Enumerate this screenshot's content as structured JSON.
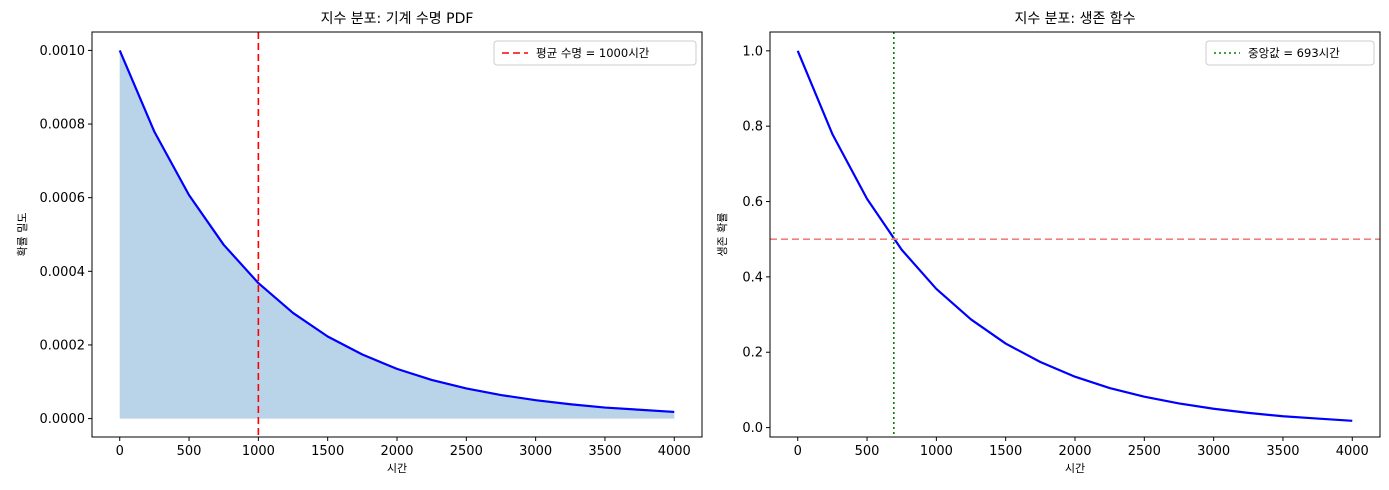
{
  "chart_data": [
    {
      "type": "area",
      "title": "지수 분포: 기계 수명 PDF",
      "xlabel": "시간",
      "ylabel": "확률 밀도",
      "xlim": [
        -200,
        4200
      ],
      "ylim": [
        -5e-05,
        0.00105
      ],
      "xticks": [
        0,
        500,
        1000,
        1500,
        2000,
        2500,
        3000,
        3500,
        4000
      ],
      "xtick_labels": [
        "0",
        "500",
        "1000",
        "1500",
        "2000",
        "2500",
        "3000",
        "3500",
        "4000"
      ],
      "yticks": [
        0,
        0.0002,
        0.0004,
        0.0006,
        0.0008,
        0.001
      ],
      "ytick_labels": [
        "0.0000",
        "0.0002",
        "0.0004",
        "0.0006",
        "0.0008",
        "0.0010"
      ],
      "grid": false,
      "legend_position": "top-right",
      "series": [
        {
          "name": "",
          "kind": "line+fill",
          "color": "#0000ff",
          "fill_color": "#b9d4e8",
          "x": [
            0,
            250,
            500,
            750,
            1000,
            1250,
            1500,
            1750,
            2000,
            2250,
            2500,
            2750,
            3000,
            3250,
            3500,
            3750,
            4000
          ],
          "y": [
            0.001,
            0.000779,
            0.000607,
            0.000472,
            0.000368,
            0.000287,
            0.000223,
            0.000174,
            0.000135,
            0.000105,
            8.2e-05,
            6.4e-05,
            5e-05,
            3.9e-05,
            3e-05,
            2.4e-05,
            1.8e-05
          ]
        }
      ],
      "reference_lines": [
        {
          "orientation": "vertical",
          "value": 1000,
          "style": "dashed",
          "color": "#ff0000",
          "label": "평균 수명 = 1000시간"
        }
      ]
    },
    {
      "type": "line",
      "title": "지수 분포: 생존 함수",
      "xlabel": "시간",
      "ylabel": "생존 확률",
      "xlim": [
        -200,
        4200
      ],
      "ylim": [
        -0.025,
        1.05
      ],
      "xticks": [
        0,
        500,
        1000,
        1500,
        2000,
        2500,
        3000,
        3500,
        4000
      ],
      "xtick_labels": [
        "0",
        "500",
        "1000",
        "1500",
        "2000",
        "2500",
        "3000",
        "3500",
        "4000"
      ],
      "yticks": [
        0,
        0.2,
        0.4,
        0.6,
        0.8,
        1.0
      ],
      "ytick_labels": [
        "0.0",
        "0.2",
        "0.4",
        "0.6",
        "0.8",
        "1.0"
      ],
      "grid": false,
      "legend_position": "top-right",
      "series": [
        {
          "name": "",
          "kind": "line",
          "color": "#0000ff",
          "x": [
            0,
            250,
            500,
            750,
            1000,
            1250,
            1500,
            1750,
            2000,
            2250,
            2500,
            2750,
            3000,
            3250,
            3500,
            3750,
            4000
          ],
          "y": [
            1.0,
            0.779,
            0.607,
            0.472,
            0.368,
            0.287,
            0.223,
            0.174,
            0.135,
            0.105,
            0.082,
            0.064,
            0.05,
            0.039,
            0.03,
            0.024,
            0.018
          ]
        }
      ],
      "reference_lines": [
        {
          "orientation": "vertical",
          "value": 693,
          "style": "dotted",
          "color": "#008000",
          "label": "중앙값 = 693시간"
        },
        {
          "orientation": "horizontal",
          "value": 0.5,
          "style": "dashed",
          "color": "#f08080",
          "label": ""
        }
      ]
    }
  ]
}
